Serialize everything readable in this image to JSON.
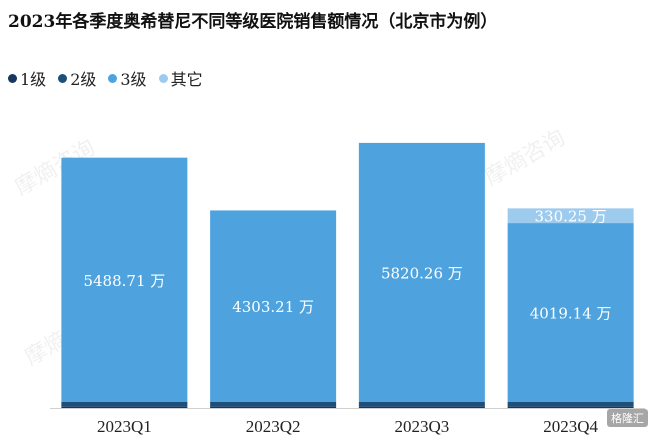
{
  "colors": {
    "level1": "#17375e",
    "level2": "#1f4e79",
    "level3": "#4ea3df",
    "other": "#9dcbee",
    "label": "#ffffff",
    "axis_text": "#222222"
  },
  "watermark_text": "摩熵咨询",
  "corner_mark": "格隆汇",
  "chart_data": {
    "type": "bar",
    "stacked": true,
    "title": "2023年各季度奥希替尼不同等级医院销售额情况（北京市为例）",
    "unit": "万",
    "categories": [
      "2023Q1",
      "2023Q2",
      "2023Q3",
      "2023Q4"
    ],
    "ylim": [
      0,
      6200
    ],
    "grid": false,
    "legend_position": "top-left",
    "legend": [
      "1级",
      "2级",
      "3级",
      "其它"
    ],
    "series": [
      {
        "name": "1级",
        "values": [
          25,
          25,
          25,
          25
        ],
        "color_key": "level1"
      },
      {
        "name": "2级",
        "values": [
          110,
          110,
          110,
          110
        ],
        "color_key": "level2"
      },
      {
        "name": "3级",
        "values": [
          5488.71,
          4303.21,
          5820.26,
          4019.14
        ],
        "color_key": "level3"
      },
      {
        "name": "其它",
        "values": [
          0,
          0,
          0,
          330.25
        ],
        "color_key": "other"
      }
    ],
    "data_labels": [
      {
        "series": "3级",
        "texts": [
          "5488.71 万",
          "4303.21 万",
          "5820.26 万",
          "4019.14 万"
        ]
      },
      {
        "series": "其它",
        "texts": [
          "",
          "",
          "",
          "330.25 万"
        ]
      }
    ]
  }
}
